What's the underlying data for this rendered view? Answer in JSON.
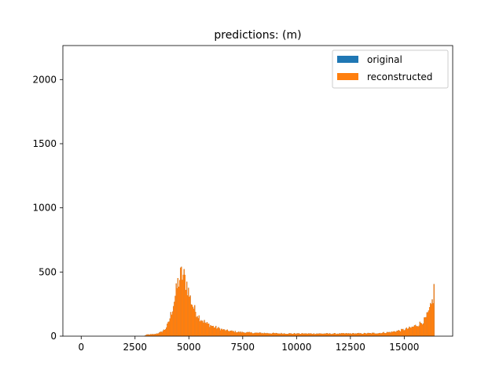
{
  "chart_data": {
    "type": "histogram",
    "title": "predictions: (m)",
    "xlabel": "",
    "ylabel": "",
    "xlim": [
      -850,
      17250
    ],
    "ylim": [
      0,
      2265
    ],
    "x_ticks": [
      0,
      2500,
      5000,
      7500,
      10000,
      12500,
      15000
    ],
    "x_tick_labels": [
      "0",
      "2500",
      "5000",
      "7500",
      "10000",
      "12500",
      "15000"
    ],
    "y_ticks": [
      0,
      500,
      1000,
      1500,
      2000
    ],
    "y_tick_labels": [
      "0",
      "500",
      "1000",
      "1500",
      "2000"
    ],
    "grid": false,
    "legend_position": "upper right",
    "bin_range": [
      0,
      16400
    ],
    "bin_width": 41,
    "series": [
      {
        "name": "original",
        "color": "#1f77b4",
        "profile": [
          [
            0,
            0
          ],
          [
            2900,
            0
          ],
          [
            3050,
            12
          ],
          [
            3400,
            15
          ],
          [
            3700,
            30
          ],
          [
            3900,
            55
          ],
          [
            4050,
            100
          ],
          [
            4200,
            190
          ],
          [
            4350,
            300
          ],
          [
            4500,
            420
          ],
          [
            4650,
            480
          ],
          [
            4750,
            470
          ],
          [
            4900,
            410
          ],
          [
            5050,
            300
          ],
          [
            5250,
            210
          ],
          [
            5500,
            145
          ],
          [
            5800,
            100
          ],
          [
            6200,
            70
          ],
          [
            6700,
            45
          ],
          [
            7300,
            32
          ],
          [
            8000,
            26
          ],
          [
            9000,
            22
          ],
          [
            10000,
            20
          ],
          [
            11000,
            20
          ],
          [
            12000,
            20
          ],
          [
            13000,
            21
          ],
          [
            13800,
            24
          ],
          [
            14400,
            32
          ],
          [
            14900,
            48
          ],
          [
            15300,
            65
          ],
          [
            15700,
            95
          ],
          [
            15950,
            125
          ],
          [
            16100,
            170
          ],
          [
            16250,
            230
          ],
          [
            16350,
            310
          ],
          [
            16400,
            400
          ]
        ]
      },
      {
        "name": "reconstructed",
        "color": "#ff7f0e",
        "profile": [
          [
            0,
            0
          ],
          [
            2900,
            0
          ],
          [
            3050,
            12
          ],
          [
            3400,
            15
          ],
          [
            3700,
            30
          ],
          [
            3900,
            55
          ],
          [
            4050,
            100
          ],
          [
            4200,
            190
          ],
          [
            4350,
            300
          ],
          [
            4500,
            420
          ],
          [
            4650,
            480
          ],
          [
            4750,
            470
          ],
          [
            4900,
            410
          ],
          [
            5050,
            300
          ],
          [
            5250,
            210
          ],
          [
            5500,
            145
          ],
          [
            5800,
            100
          ],
          [
            6200,
            70
          ],
          [
            6700,
            45
          ],
          [
            7300,
            32
          ],
          [
            8000,
            26
          ],
          [
            9000,
            22
          ],
          [
            10000,
            20
          ],
          [
            11000,
            20
          ],
          [
            12000,
            20
          ],
          [
            13000,
            21
          ],
          [
            13800,
            24
          ],
          [
            14400,
            32
          ],
          [
            14900,
            48
          ],
          [
            15300,
            65
          ],
          [
            15700,
            95
          ],
          [
            15950,
            125
          ],
          [
            16100,
            170
          ],
          [
            16250,
            230
          ],
          [
            16350,
            310
          ],
          [
            16400,
            400
          ]
        ]
      }
    ]
  }
}
